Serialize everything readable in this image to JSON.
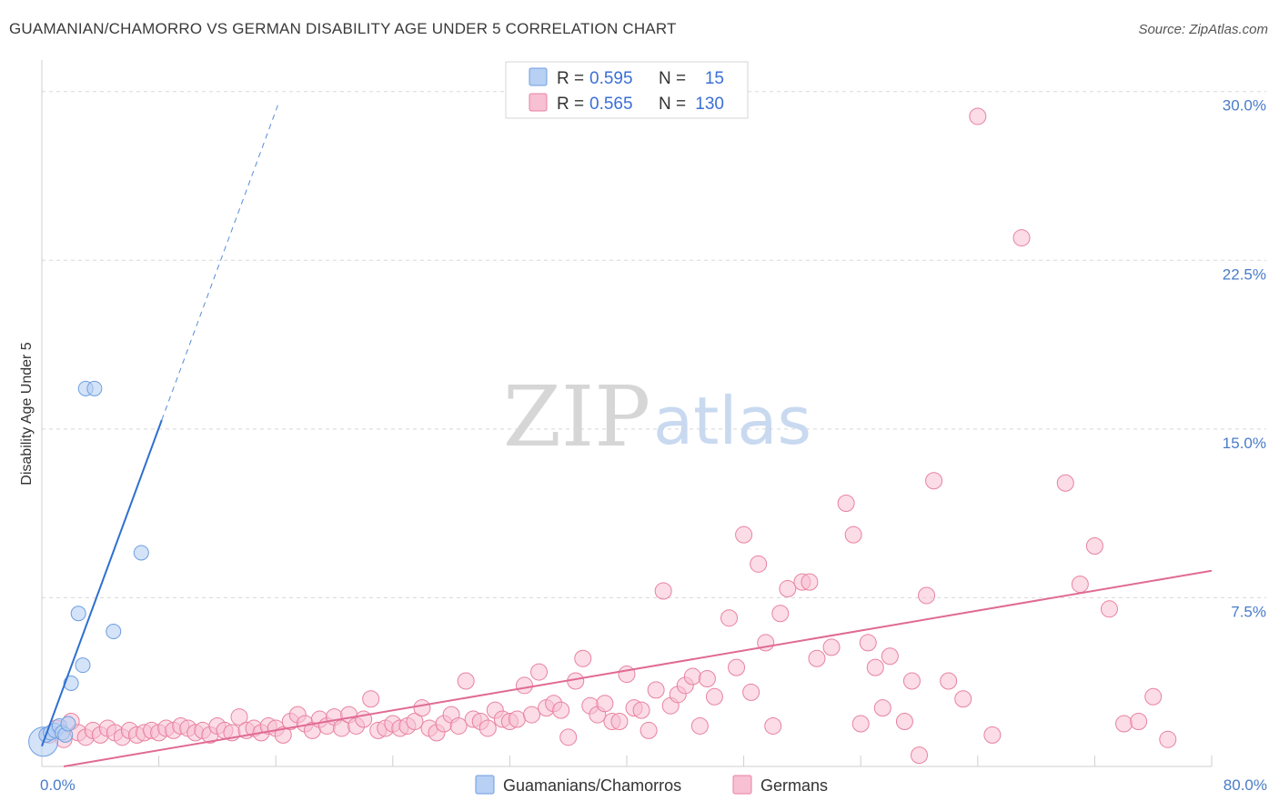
{
  "header": {
    "title": "GUAMANIAN/CHAMORRO VS GERMAN DISABILITY AGE UNDER 5 CORRELATION CHART",
    "source": "Source: ZipAtlas.com"
  },
  "watermark": {
    "zip": "ZIP",
    "atlas": "atlas"
  },
  "colors": {
    "blue_fill": "#b7d0f3",
    "blue_stroke": "#6d9ee0",
    "blue_line": "#2e6fd0",
    "pink_fill": "#f7c0d3",
    "pink_stroke": "#e8829f",
    "pink_line": "#e06a94",
    "grid": "#d8d8d8",
    "tick_text": "#4a7cc9"
  },
  "legend": {
    "rows": [
      {
        "r_label": "R =",
        "r_value": "0.595",
        "n_label": "N =",
        "n_value": "15"
      },
      {
        "r_label": "R =",
        "r_value": "0.565",
        "n_label": "N =",
        "n_value": "130"
      }
    ]
  },
  "chart_data": {
    "type": "scatter",
    "title": "GUAMANIAN/CHAMORRO VS GERMAN DISABILITY AGE UNDER 5 CORRELATION CHART",
    "xlabel": "",
    "ylabel": "Disability Age Under 5",
    "xlim": [
      0,
      80
    ],
    "ylim": [
      0,
      31
    ],
    "x_tick_labels": [
      "0.0%",
      "80.0%"
    ],
    "y_ticks": [
      7.5,
      15.0,
      22.5,
      30.0
    ],
    "y_tick_labels": [
      "7.5%",
      "15.0%",
      "22.5%",
      "30.0%"
    ],
    "grid": true,
    "legend_position": "top-center",
    "series": [
      {
        "name": "Guamanians/Chamorros",
        "color": "#b7d0f3",
        "points": [
          [
            0.1,
            1.1
          ],
          [
            0.3,
            1.4
          ],
          [
            0.6,
            1.5
          ],
          [
            0.9,
            1.6
          ],
          [
            1.2,
            1.8
          ],
          [
            1.4,
            1.5
          ],
          [
            1.6,
            1.4
          ],
          [
            1.8,
            1.9
          ],
          [
            2.0,
            3.7
          ],
          [
            2.5,
            6.8
          ],
          [
            2.8,
            4.5
          ],
          [
            3.0,
            16.8
          ],
          [
            3.6,
            16.8
          ],
          [
            4.9,
            6.0
          ],
          [
            6.8,
            9.5
          ]
        ],
        "trend": {
          "x0": 0.0,
          "y0": 0.9,
          "x1": 8.2,
          "y1": 15.4,
          "dashed_to": [
            16.2,
            29.5
          ]
        }
      },
      {
        "name": "Germans",
        "color": "#f7c0d3",
        "points": [
          [
            0.5,
            1.4
          ],
          [
            1.0,
            1.7
          ],
          [
            1.5,
            1.2
          ],
          [
            2.0,
            2.0
          ],
          [
            2.5,
            1.5
          ],
          [
            3.0,
            1.3
          ],
          [
            3.5,
            1.6
          ],
          [
            4.0,
            1.4
          ],
          [
            4.5,
            1.7
          ],
          [
            5.0,
            1.5
          ],
          [
            5.5,
            1.3
          ],
          [
            6.0,
            1.6
          ],
          [
            6.5,
            1.4
          ],
          [
            7.0,
            1.5
          ],
          [
            7.5,
            1.6
          ],
          [
            8.0,
            1.5
          ],
          [
            8.5,
            1.7
          ],
          [
            9.0,
            1.6
          ],
          [
            9.5,
            1.8
          ],
          [
            10.0,
            1.7
          ],
          [
            10.5,
            1.5
          ],
          [
            11.0,
            1.6
          ],
          [
            11.5,
            1.4
          ],
          [
            12.0,
            1.8
          ],
          [
            12.5,
            1.6
          ],
          [
            13.0,
            1.5
          ],
          [
            13.5,
            2.2
          ],
          [
            14.0,
            1.6
          ],
          [
            14.5,
            1.7
          ],
          [
            15.0,
            1.5
          ],
          [
            15.5,
            1.8
          ],
          [
            16.0,
            1.7
          ],
          [
            16.5,
            1.4
          ],
          [
            17.0,
            2.0
          ],
          [
            17.5,
            2.3
          ],
          [
            18.0,
            1.9
          ],
          [
            18.5,
            1.6
          ],
          [
            19.0,
            2.1
          ],
          [
            19.5,
            1.8
          ],
          [
            20.0,
            2.2
          ],
          [
            20.5,
            1.7
          ],
          [
            21.0,
            2.3
          ],
          [
            21.5,
            1.8
          ],
          [
            22.0,
            2.1
          ],
          [
            22.5,
            3.0
          ],
          [
            23.0,
            1.6
          ],
          [
            23.5,
            1.7
          ],
          [
            24.0,
            1.9
          ],
          [
            24.5,
            1.7
          ],
          [
            25.0,
            1.8
          ],
          [
            25.5,
            2.0
          ],
          [
            26.0,
            2.6
          ],
          [
            26.5,
            1.7
          ],
          [
            27.0,
            1.5
          ],
          [
            27.5,
            1.9
          ],
          [
            28.0,
            2.3
          ],
          [
            28.5,
            1.8
          ],
          [
            29.0,
            3.8
          ],
          [
            29.5,
            2.1
          ],
          [
            30.0,
            2.0
          ],
          [
            30.5,
            1.7
          ],
          [
            31.0,
            2.5
          ],
          [
            31.5,
            2.1
          ],
          [
            32.0,
            2.0
          ],
          [
            32.5,
            2.1
          ],
          [
            33.0,
            3.6
          ],
          [
            33.5,
            2.3
          ],
          [
            34.0,
            4.2
          ],
          [
            34.5,
            2.6
          ],
          [
            35.0,
            2.8
          ],
          [
            35.5,
            2.5
          ],
          [
            36.0,
            1.3
          ],
          [
            36.5,
            3.8
          ],
          [
            37.0,
            4.8
          ],
          [
            37.5,
            2.7
          ],
          [
            38.0,
            2.3
          ],
          [
            38.5,
            2.8
          ],
          [
            39.0,
            2.0
          ],
          [
            39.5,
            2.0
          ],
          [
            40.0,
            4.1
          ],
          [
            40.5,
            2.6
          ],
          [
            41.0,
            2.5
          ],
          [
            41.5,
            1.6
          ],
          [
            42.0,
            3.4
          ],
          [
            42.5,
            7.8
          ],
          [
            43.0,
            2.7
          ],
          [
            43.5,
            3.2
          ],
          [
            44.0,
            3.6
          ],
          [
            44.5,
            4.0
          ],
          [
            45.0,
            1.8
          ],
          [
            45.5,
            3.9
          ],
          [
            46.0,
            3.1
          ],
          [
            47.0,
            6.6
          ],
          [
            47.5,
            4.4
          ],
          [
            48.0,
            10.3
          ],
          [
            48.5,
            3.3
          ],
          [
            49.0,
            9.0
          ],
          [
            49.5,
            5.5
          ],
          [
            50.0,
            1.8
          ],
          [
            50.5,
            6.8
          ],
          [
            51.0,
            7.9
          ],
          [
            52.0,
            8.2
          ],
          [
            52.5,
            8.2
          ],
          [
            53.0,
            4.8
          ],
          [
            54.0,
            5.3
          ],
          [
            55.0,
            11.7
          ],
          [
            55.5,
            10.3
          ],
          [
            56.0,
            1.9
          ],
          [
            56.5,
            5.5
          ],
          [
            57.0,
            4.4
          ],
          [
            57.5,
            2.6
          ],
          [
            58.0,
            4.9
          ],
          [
            59.0,
            2.0
          ],
          [
            59.5,
            3.8
          ],
          [
            60.0,
            0.5
          ],
          [
            60.5,
            7.6
          ],
          [
            61.0,
            12.7
          ],
          [
            62.0,
            3.8
          ],
          [
            63.0,
            3.0
          ],
          [
            64.0,
            28.9
          ],
          [
            65.0,
            1.4
          ],
          [
            67.0,
            23.5
          ],
          [
            70.0,
            12.6
          ],
          [
            71.0,
            8.1
          ],
          [
            72.0,
            9.8
          ],
          [
            73.0,
            7.0
          ],
          [
            74.0,
            1.9
          ],
          [
            75.0,
            2.0
          ],
          [
            76.0,
            3.1
          ],
          [
            77.0,
            1.2
          ]
        ],
        "trend": {
          "x0": 1.5,
          "y0": 0.0,
          "x1": 80.0,
          "y1": 8.7
        }
      }
    ]
  }
}
